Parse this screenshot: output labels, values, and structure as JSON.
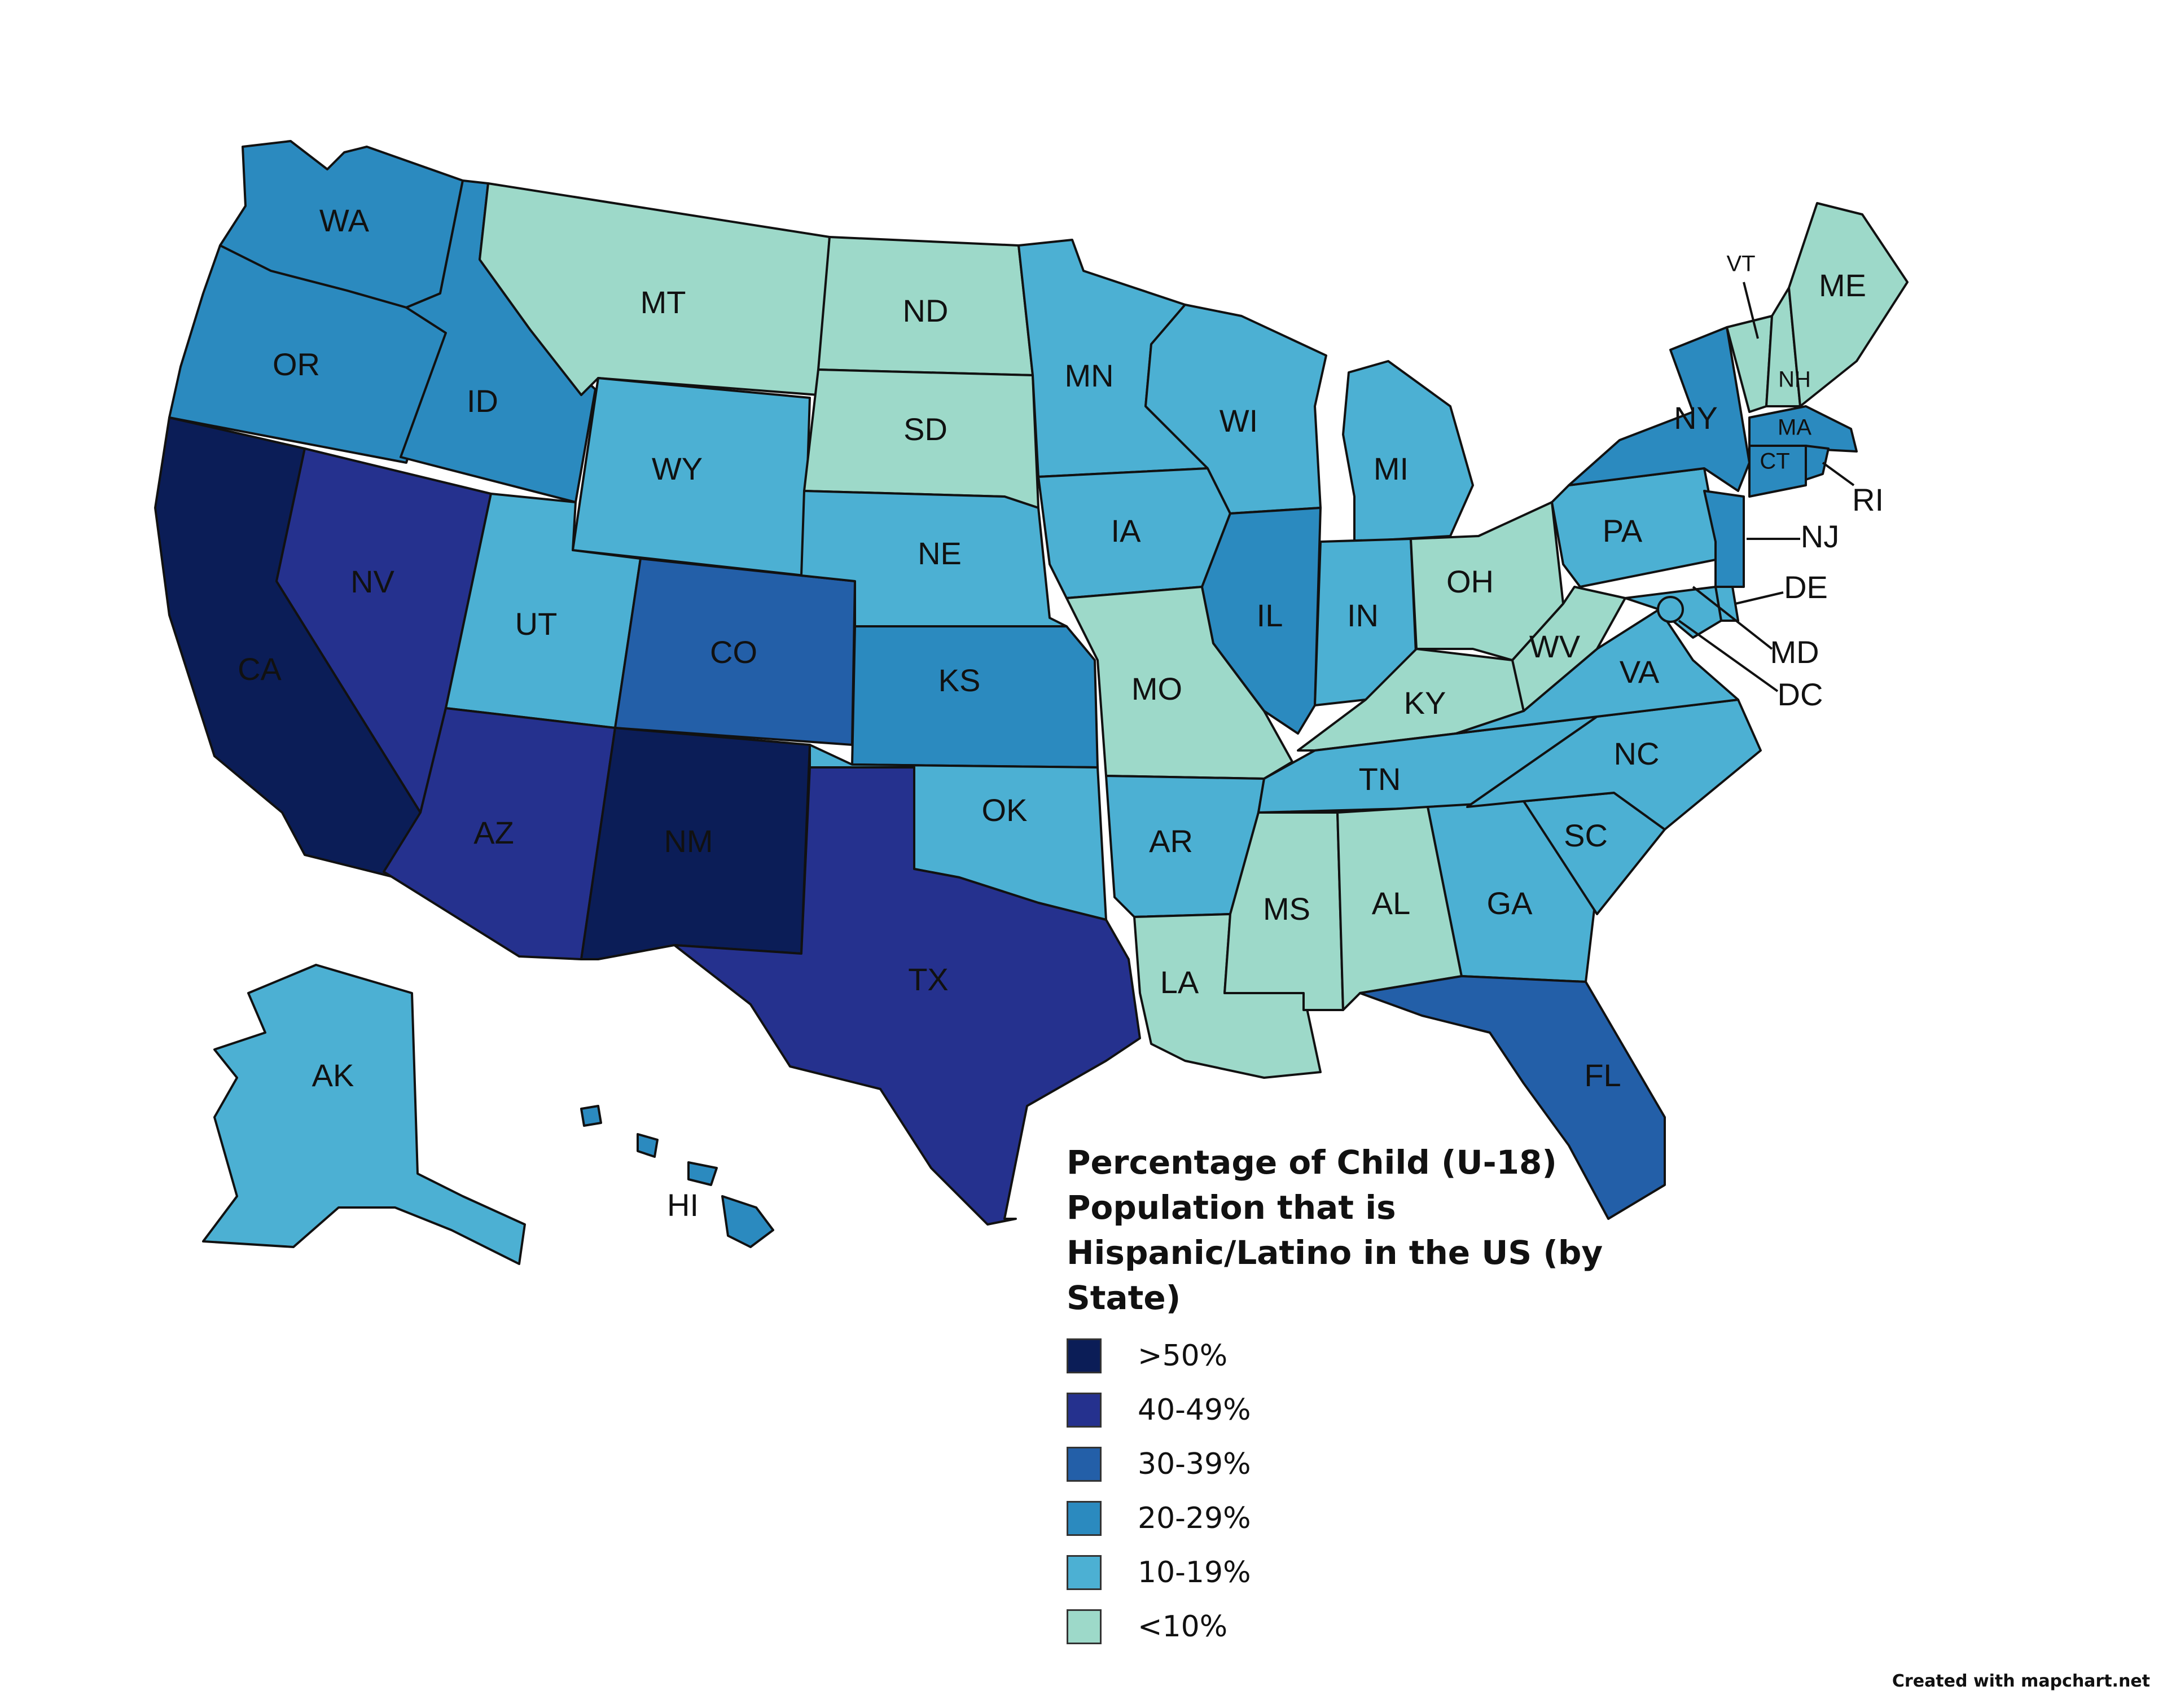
{
  "title": "Percentage of Child (U-18) Population that is Hispanic/Latino in the US (by State)",
  "credit": "Created with mapchart.net",
  "legend": [
    {
      "key": "c5",
      "label": ">50%",
      "color": "#0b1d57"
    },
    {
      "key": "c4",
      "label": "40-49%",
      "color": "#25318e"
    },
    {
      "key": "c3",
      "label": "30-39%",
      "color": "#235fa8"
    },
    {
      "key": "c2",
      "label": "20-29%",
      "color": "#2b8abf"
    },
    {
      "key": "c1",
      "label": "10-19%",
      "color": "#4cb0d3"
    },
    {
      "key": "c0",
      "label": "<10%",
      "color": "#9dd9c9"
    }
  ],
  "states": {
    "WA": "c2",
    "OR": "c2",
    "CA": "c5",
    "NV": "c4",
    "ID": "c2",
    "MT": "c0",
    "WY": "c1",
    "UT": "c1",
    "AZ": "c4",
    "CO": "c3",
    "NM": "c5",
    "ND": "c0",
    "SD": "c0",
    "NE": "c1",
    "KS": "c2",
    "OK": "c1",
    "TX": "c4",
    "MN": "c1",
    "IA": "c1",
    "MO": "c0",
    "AR": "c1",
    "LA": "c0",
    "WI": "c1",
    "IL": "c2",
    "MI": "c1",
    "IN": "c1",
    "OH": "c0",
    "KY": "c0",
    "TN": "c1",
    "MS": "c0",
    "AL": "c0",
    "GA": "c1",
    "FL": "c3",
    "SC": "c1",
    "NC": "c1",
    "VA": "c1",
    "WV": "c0",
    "PA": "c1",
    "NY": "c2",
    "VT": "c0",
    "NH": "c0",
    "ME": "c0",
    "MA": "c2",
    "RI": "c2",
    "CT": "c2",
    "NJ": "c2",
    "DE": "c1",
    "MD": "c1",
    "DC": "c1",
    "AK": "c1",
    "HI": "c2"
  },
  "labels": {
    "WA": "WA",
    "OR": "OR",
    "CA": "CA",
    "NV": "NV",
    "ID": "ID",
    "MT": "MT",
    "WY": "WY",
    "UT": "UT",
    "AZ": "AZ",
    "CO": "CO",
    "NM": "NM",
    "ND": "ND",
    "SD": "SD",
    "NE": "NE",
    "KS": "KS",
    "OK": "OK",
    "TX": "TX",
    "MN": "MN",
    "IA": "IA",
    "MO": "MO",
    "AR": "AR",
    "LA": "LA",
    "WI": "WI",
    "IL": "IL",
    "MI": "MI",
    "IN": "IN",
    "OH": "OH",
    "KY": "KY",
    "TN": "TN",
    "MS": "MS",
    "AL": "AL",
    "GA": "GA",
    "FL": "FL",
    "SC": "SC",
    "NC": "NC",
    "VA": "VA",
    "WV": "WV",
    "PA": "PA",
    "NY": "NY",
    "VT": "VT",
    "NH": "NH",
    "ME": "ME",
    "MA": "MA",
    "RI": "RI",
    "CT": "CT",
    "NJ": "NJ",
    "DE": "DE",
    "MD": "MD",
    "DC": "DC",
    "AK": "AK",
    "HI": "HI"
  }
}
